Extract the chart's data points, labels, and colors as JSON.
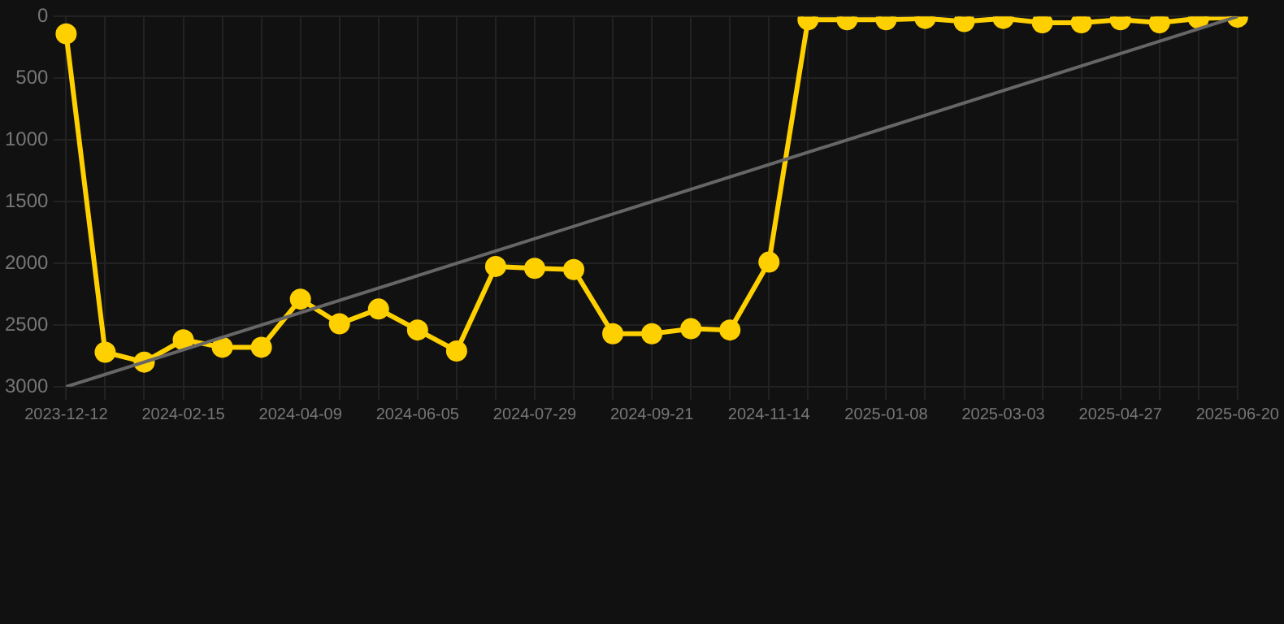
{
  "chart_data": {
    "type": "line",
    "categories": [
      "2023-12-12",
      null,
      null,
      "2024-02-15",
      null,
      null,
      "2024-04-09",
      null,
      null,
      "2024-06-05",
      null,
      null,
      "2024-07-29",
      null,
      null,
      "2024-09-21",
      null,
      null,
      "2024-11-14",
      null,
      null,
      "2025-01-08",
      null,
      null,
      "2025-03-03",
      null,
      null,
      "2025-04-27",
      null,
      null,
      "2025-06-20"
    ],
    "series": [
      {
        "color": "#ffd000",
        "marker": "circle",
        "values": [
          140,
          2720,
          2800,
          2620,
          2680,
          2680,
          2290,
          2490,
          2370,
          2540,
          2710,
          2025,
          2040,
          2050,
          2570,
          2570,
          2530,
          2540,
          1990,
          25,
          25,
          25,
          15,
          40,
          15,
          50,
          50,
          25,
          50,
          15,
          5
        ]
      },
      {
        "color": "#666666",
        "marker": "none",
        "values": [
          3000,
          null,
          null,
          null,
          null,
          null,
          null,
          null,
          null,
          null,
          null,
          null,
          null,
          null,
          null,
          null,
          null,
          null,
          null,
          null,
          null,
          null,
          null,
          null,
          null,
          null,
          null,
          null,
          null,
          null,
          0
        ]
      }
    ],
    "ylim": [
      3000,
      0
    ],
    "yticks": [
      0,
      500,
      1000,
      1500,
      2000,
      2500,
      3000
    ],
    "grid": true
  }
}
